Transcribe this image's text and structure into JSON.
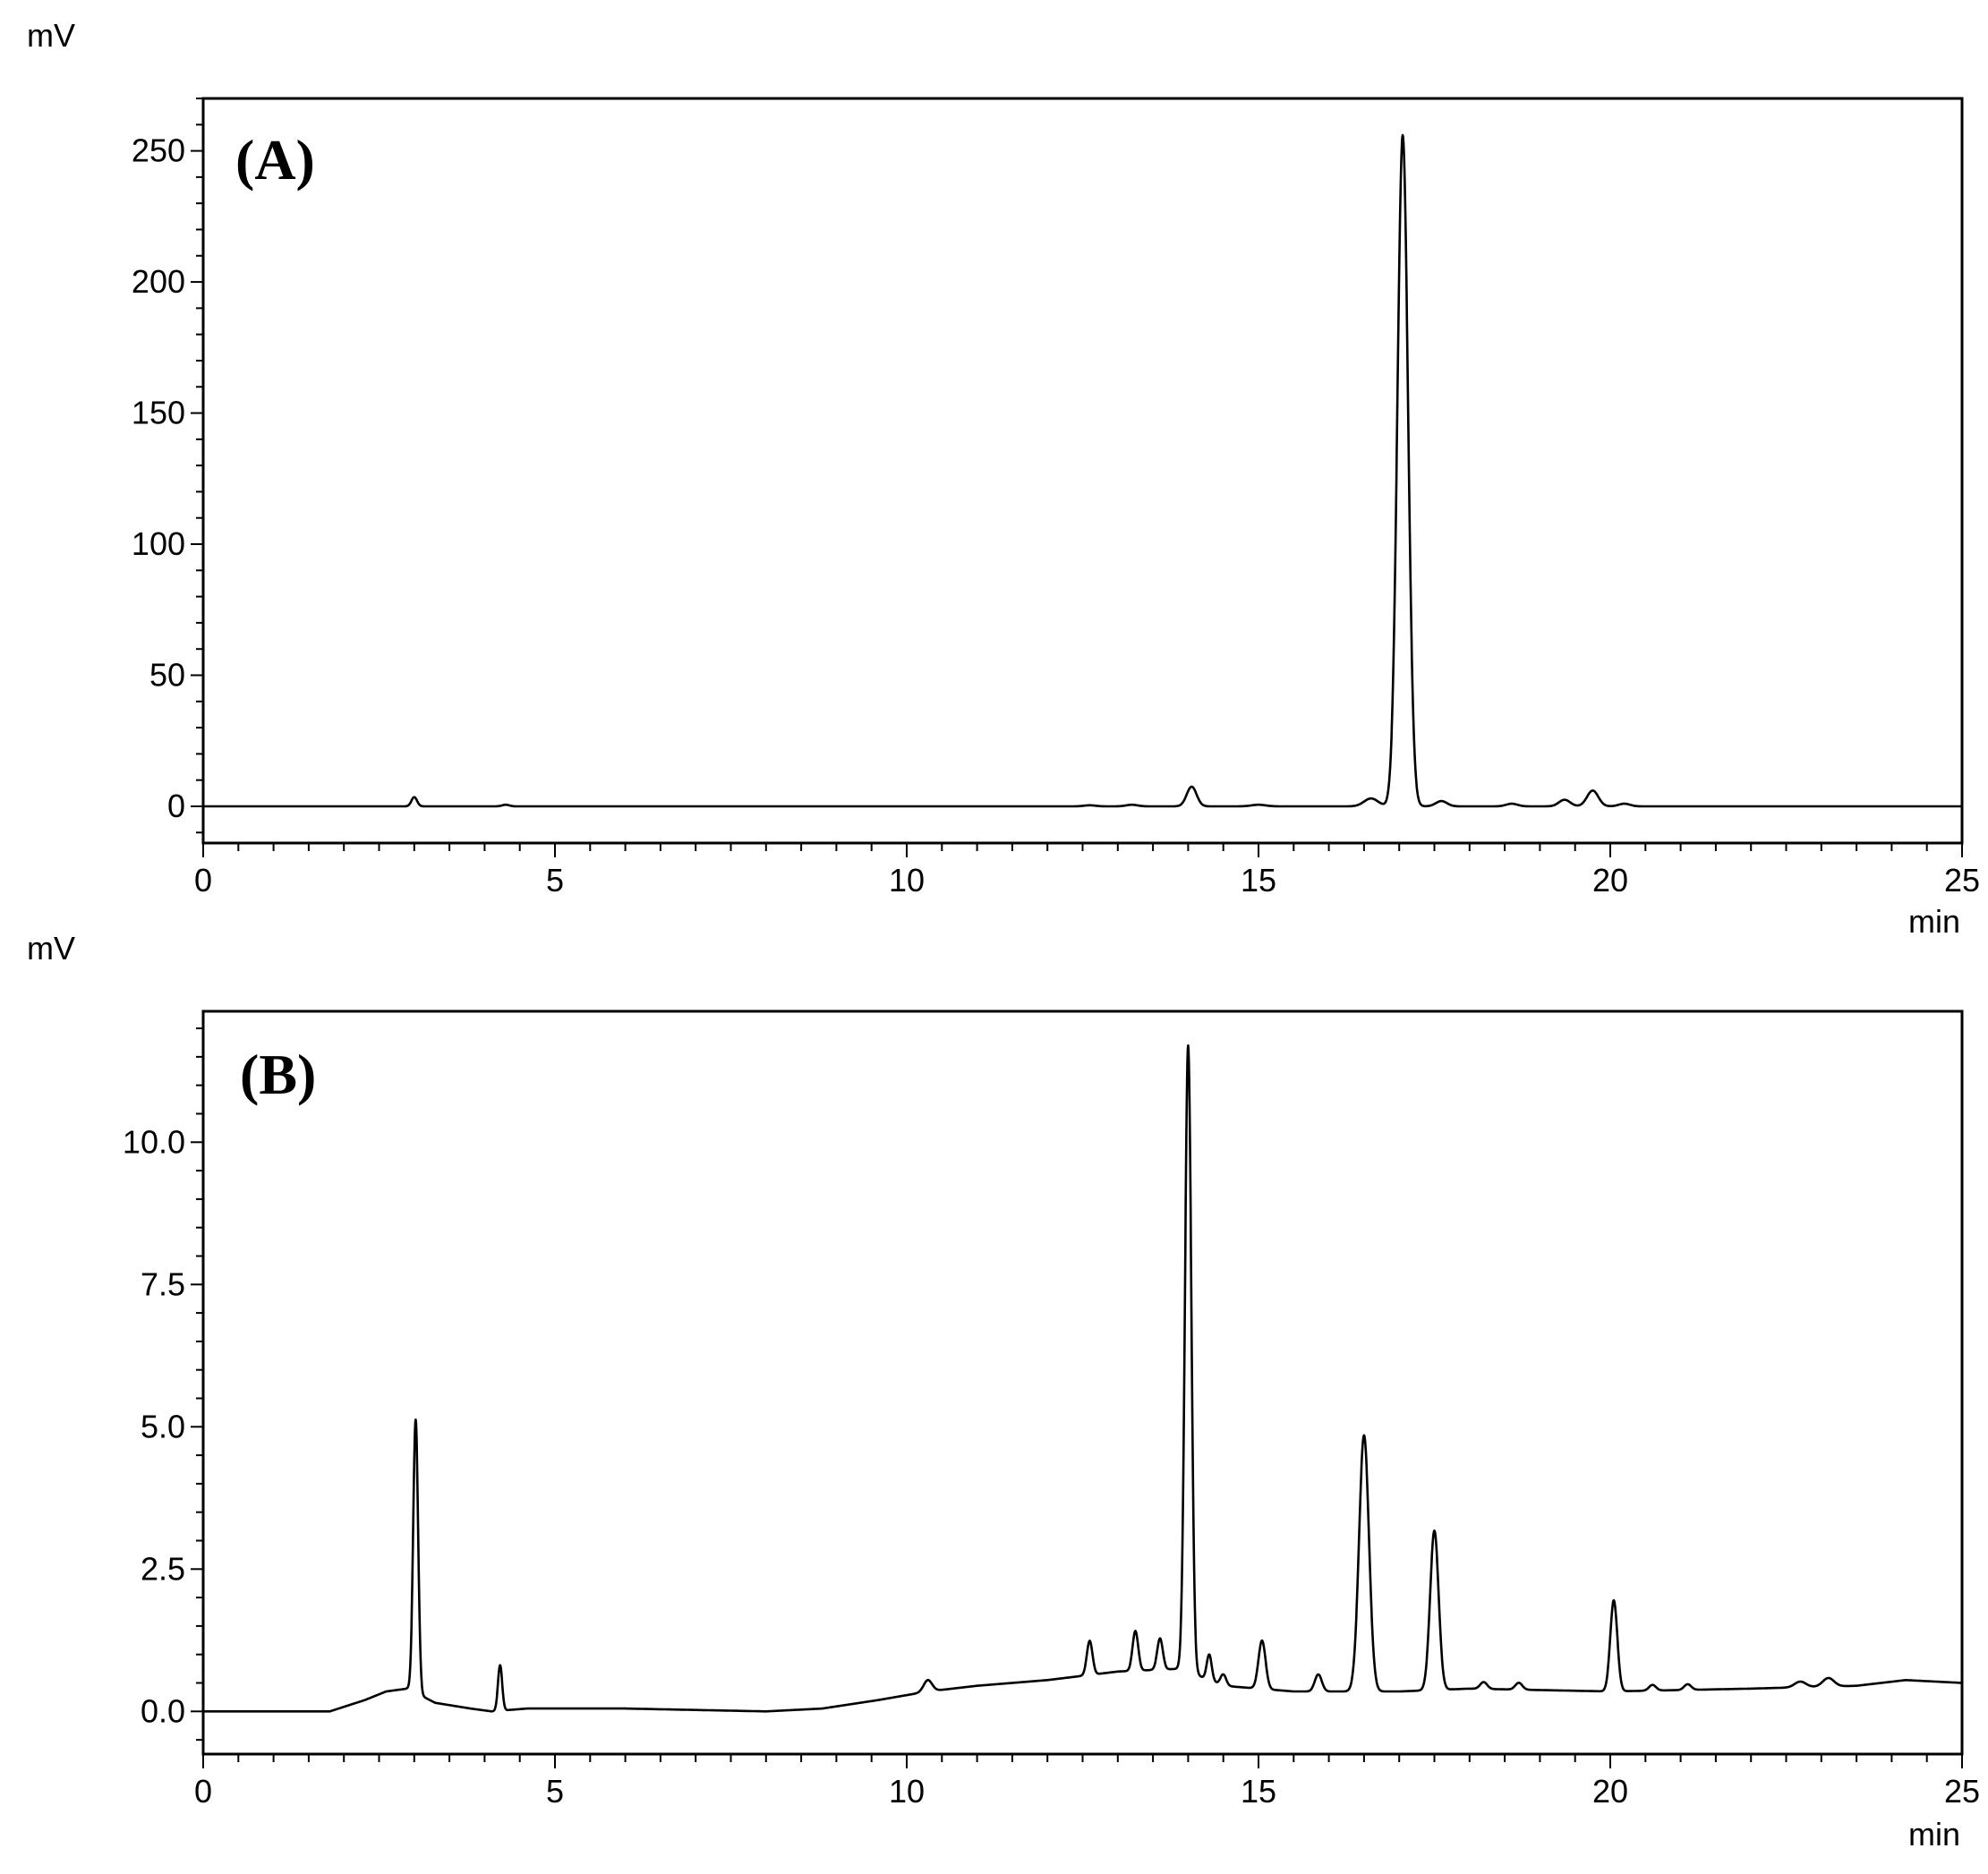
{
  "chart_data": [
    {
      "type": "line",
      "panel_label": "(A)",
      "ylabel": "mV",
      "xlabel": "min",
      "xlim": [
        0,
        25
      ],
      "ylim": [
        -14,
        270
      ],
      "xticks": [
        0,
        5,
        10,
        15,
        20,
        25
      ],
      "xtick_labels": [
        "0",
        "5",
        "10",
        "15",
        "20",
        "25"
      ],
      "yticks": [
        0,
        50,
        100,
        150,
        200,
        250
      ],
      "ytick_labels": [
        "0",
        "50",
        "100",
        "150",
        "200",
        "250"
      ],
      "grid": false,
      "baseline": [
        [
          0,
          0
        ],
        [
          25,
          0
        ]
      ],
      "peaks": [
        [
          3.0,
          3.5,
          0.04
        ],
        [
          4.3,
          0.6,
          0.05
        ],
        [
          12.6,
          0.4,
          0.08
        ],
        [
          13.2,
          0.6,
          0.08
        ],
        [
          14.05,
          7.5,
          0.07
        ],
        [
          15.0,
          0.6,
          0.1
        ],
        [
          16.6,
          3.0,
          0.1
        ],
        [
          17.05,
          256,
          0.075
        ],
        [
          17.6,
          2.0,
          0.08
        ],
        [
          18.6,
          1.0,
          0.08
        ],
        [
          19.35,
          2.5,
          0.08
        ],
        [
          19.75,
          6.0,
          0.08
        ],
        [
          20.2,
          1.0,
          0.08
        ]
      ]
    },
    {
      "type": "line",
      "panel_label": "(B)",
      "ylabel": "mV",
      "xlabel": "min",
      "xlim": [
        0,
        25
      ],
      "ylim": [
        -0.75,
        12.3
      ],
      "xticks": [
        0,
        5,
        10,
        15,
        20,
        25
      ],
      "xtick_labels": [
        "0",
        "5",
        "10",
        "15",
        "20",
        "25"
      ],
      "yticks": [
        0.0,
        2.5,
        5.0,
        7.5,
        10.0
      ],
      "ytick_labels": [
        "0.0",
        "2.5",
        "5.0",
        "7.5",
        "10.0"
      ],
      "grid": false,
      "baseline": [
        [
          0,
          0.0
        ],
        [
          1.8,
          0.0
        ],
        [
          2.3,
          0.2
        ],
        [
          2.6,
          0.35
        ],
        [
          2.9,
          0.4
        ],
        [
          3.3,
          0.15
        ],
        [
          3.8,
          0.05
        ],
        [
          4.1,
          0.0
        ],
        [
          4.6,
          0.05
        ],
        [
          6.0,
          0.05
        ],
        [
          8.0,
          0.0
        ],
        [
          8.8,
          0.05
        ],
        [
          9.6,
          0.2
        ],
        [
          10.3,
          0.35
        ],
        [
          11.0,
          0.45
        ],
        [
          12.0,
          0.55
        ],
        [
          13.0,
          0.7
        ],
        [
          13.9,
          0.75
        ],
        [
          14.5,
          0.45
        ],
        [
          15.5,
          0.35
        ],
        [
          17.0,
          0.35
        ],
        [
          18.0,
          0.4
        ],
        [
          20.0,
          0.35
        ],
        [
          22.0,
          0.4
        ],
        [
          23.5,
          0.45
        ],
        [
          24.2,
          0.55
        ],
        [
          25,
          0.5
        ]
      ],
      "peaks": [
        [
          3.02,
          4.8,
          0.035
        ],
        [
          4.22,
          0.8,
          0.03
        ],
        [
          10.3,
          0.2,
          0.06
        ],
        [
          12.6,
          0.6,
          0.04
        ],
        [
          13.25,
          0.7,
          0.04
        ],
        [
          13.6,
          0.55,
          0.04
        ],
        [
          14.0,
          11.0,
          0.045
        ],
        [
          14.3,
          0.45,
          0.035
        ],
        [
          14.5,
          0.2,
          0.04
        ],
        [
          15.05,
          0.85,
          0.05
        ],
        [
          15.85,
          0.3,
          0.05
        ],
        [
          16.5,
          4.5,
          0.07
        ],
        [
          17.5,
          2.8,
          0.06
        ],
        [
          18.2,
          0.12,
          0.05
        ],
        [
          18.7,
          0.12,
          0.05
        ],
        [
          20.05,
          1.6,
          0.05
        ],
        [
          20.6,
          0.1,
          0.05
        ],
        [
          21.1,
          0.1,
          0.05
        ],
        [
          22.7,
          0.1,
          0.08
        ],
        [
          23.1,
          0.15,
          0.08
        ]
      ]
    }
  ]
}
